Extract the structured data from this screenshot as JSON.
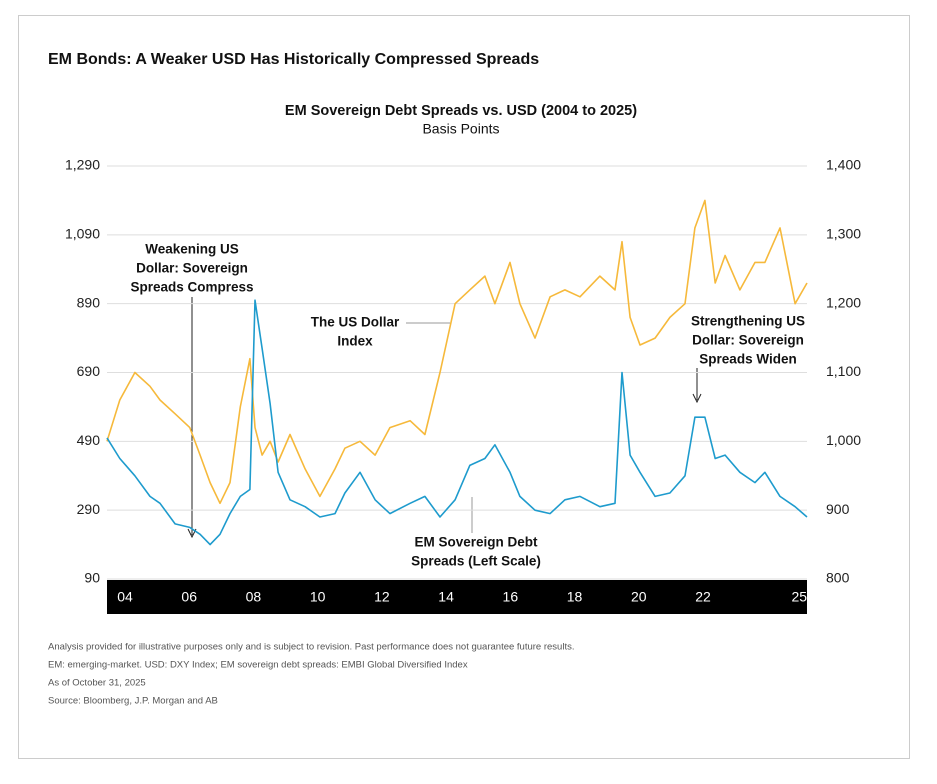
{
  "header": {
    "title": "EM Bonds: A Weaker USD Has Historically Compressed Spreads"
  },
  "chart_data": {
    "type": "line",
    "title": "EM Sovereign Debt Spreads vs. USD (2004 to 2025)",
    "subtitle": "Basis Points",
    "x": [
      2004.0,
      2004.4,
      2004.87,
      2005.34,
      2005.65,
      2006.12,
      2006.58,
      2006.9,
      2007.21,
      2007.52,
      2007.83,
      2008.15,
      2008.45,
      2008.61,
      2008.83,
      2009.08,
      2009.33,
      2009.7,
      2010.17,
      2010.63,
      2011.1,
      2011.41,
      2011.88,
      2012.35,
      2012.81,
      2013.44,
      2013.9,
      2014.37,
      2014.84,
      2015.3,
      2015.77,
      2016.08,
      2016.55,
      2016.86,
      2017.33,
      2017.8,
      2018.26,
      2018.73,
      2019.35,
      2019.82,
      2020.04,
      2020.29,
      2020.6,
      2021.07,
      2021.53,
      2022.0,
      2022.31,
      2022.62,
      2022.94,
      2023.25,
      2023.71,
      2024.18,
      2024.49,
      2024.96,
      2025.43,
      2025.8
    ],
    "series": [
      {
        "name": "EM Sovereign Debt Spreads",
        "color": "#1e9bcd",
        "axis": "y",
        "values": [
          500,
          440,
          390,
          330,
          310,
          250,
          240,
          220,
          190,
          220,
          280,
          330,
          350,
          900,
          760,
          600,
          400,
          320,
          300,
          270,
          280,
          340,
          400,
          320,
          280,
          310,
          330,
          270,
          320,
          420,
          440,
          480,
          400,
          330,
          290,
          280,
          320,
          330,
          300,
          310,
          690,
          450,
          400,
          330,
          340,
          390,
          560,
          560,
          440,
          450,
          400,
          370,
          400,
          330,
          300,
          270
        ]
      },
      {
        "name": "The US Dollar Index",
        "color": "#f6b93b",
        "axis": "y2",
        "values": [
          1000,
          1060,
          1100,
          1080,
          1060,
          1040,
          1020,
          980,
          940,
          910,
          940,
          1050,
          1120,
          1020,
          980,
          1000,
          970,
          1010,
          960,
          920,
          960,
          990,
          1000,
          980,
          1020,
          1030,
          1010,
          1100,
          1200,
          1220,
          1240,
          1200,
          1260,
          1200,
          1150,
          1210,
          1220,
          1210,
          1240,
          1220,
          1290,
          1180,
          1140,
          1150,
          1180,
          1200,
          1310,
          1350,
          1230,
          1270,
          1220,
          1260,
          1260,
          1310,
          1200,
          1230
        ]
      }
    ],
    "xlim": [
      2004,
      2025.8
    ],
    "xticks": [
      {
        "value": 2004,
        "label": "04"
      },
      {
        "value": 2006,
        "label": "06"
      },
      {
        "value": 2008,
        "label": "08"
      },
      {
        "value": 2010,
        "label": "10"
      },
      {
        "value": 2012,
        "label": "12"
      },
      {
        "value": 2014,
        "label": "14"
      },
      {
        "value": 2016,
        "label": "16"
      },
      {
        "value": 2018,
        "label": "18"
      },
      {
        "value": 2020,
        "label": "20"
      },
      {
        "value": 2022,
        "label": "22"
      },
      {
        "value": 2025,
        "label": "25"
      }
    ],
    "ylim": [
      90,
      1290
    ],
    "yticks": [
      90,
      290,
      490,
      690,
      890,
      {
        "value": 1090,
        "label": "1,090"
      },
      {
        "value": 1290,
        "label": "1,290"
      }
    ],
    "y2lim": [
      800,
      1400
    ],
    "y2ticks": [
      800,
      900,
      {
        "value": 1000,
        "label": "1,000"
      },
      {
        "value": 1100,
        "label": "1,100"
      },
      {
        "value": 1200,
        "label": "1,200"
      },
      {
        "value": 1300,
        "label": "1,300"
      },
      {
        "value": 1400,
        "label": "1,400"
      }
    ],
    "grid": true,
    "annotations": [
      {
        "lines": [
          "Weakening US",
          "Dollar: Sovereign",
          "Spreads Compress"
        ]
      },
      {
        "lines": [
          "The US Dollar",
          "Index"
        ]
      },
      {
        "lines": [
          "Strengthening US",
          "Dollar: Sovereign",
          "Spreads Widen"
        ]
      },
      {
        "lines": [
          "EM Sovereign Debt",
          "Spreads (Left Scale)"
        ]
      }
    ]
  },
  "footnotes": [
    "Analysis provided for illustrative purposes only and is subject to revision. Past performance does not guarantee future results.",
    "EM: emerging-market. USD: DXY Index; EM sovereign debt spreads: EMBI Global Diversified Index",
    "As of October 31, 2025",
    "Source: Bloomberg, J.P. Morgan and AB"
  ]
}
